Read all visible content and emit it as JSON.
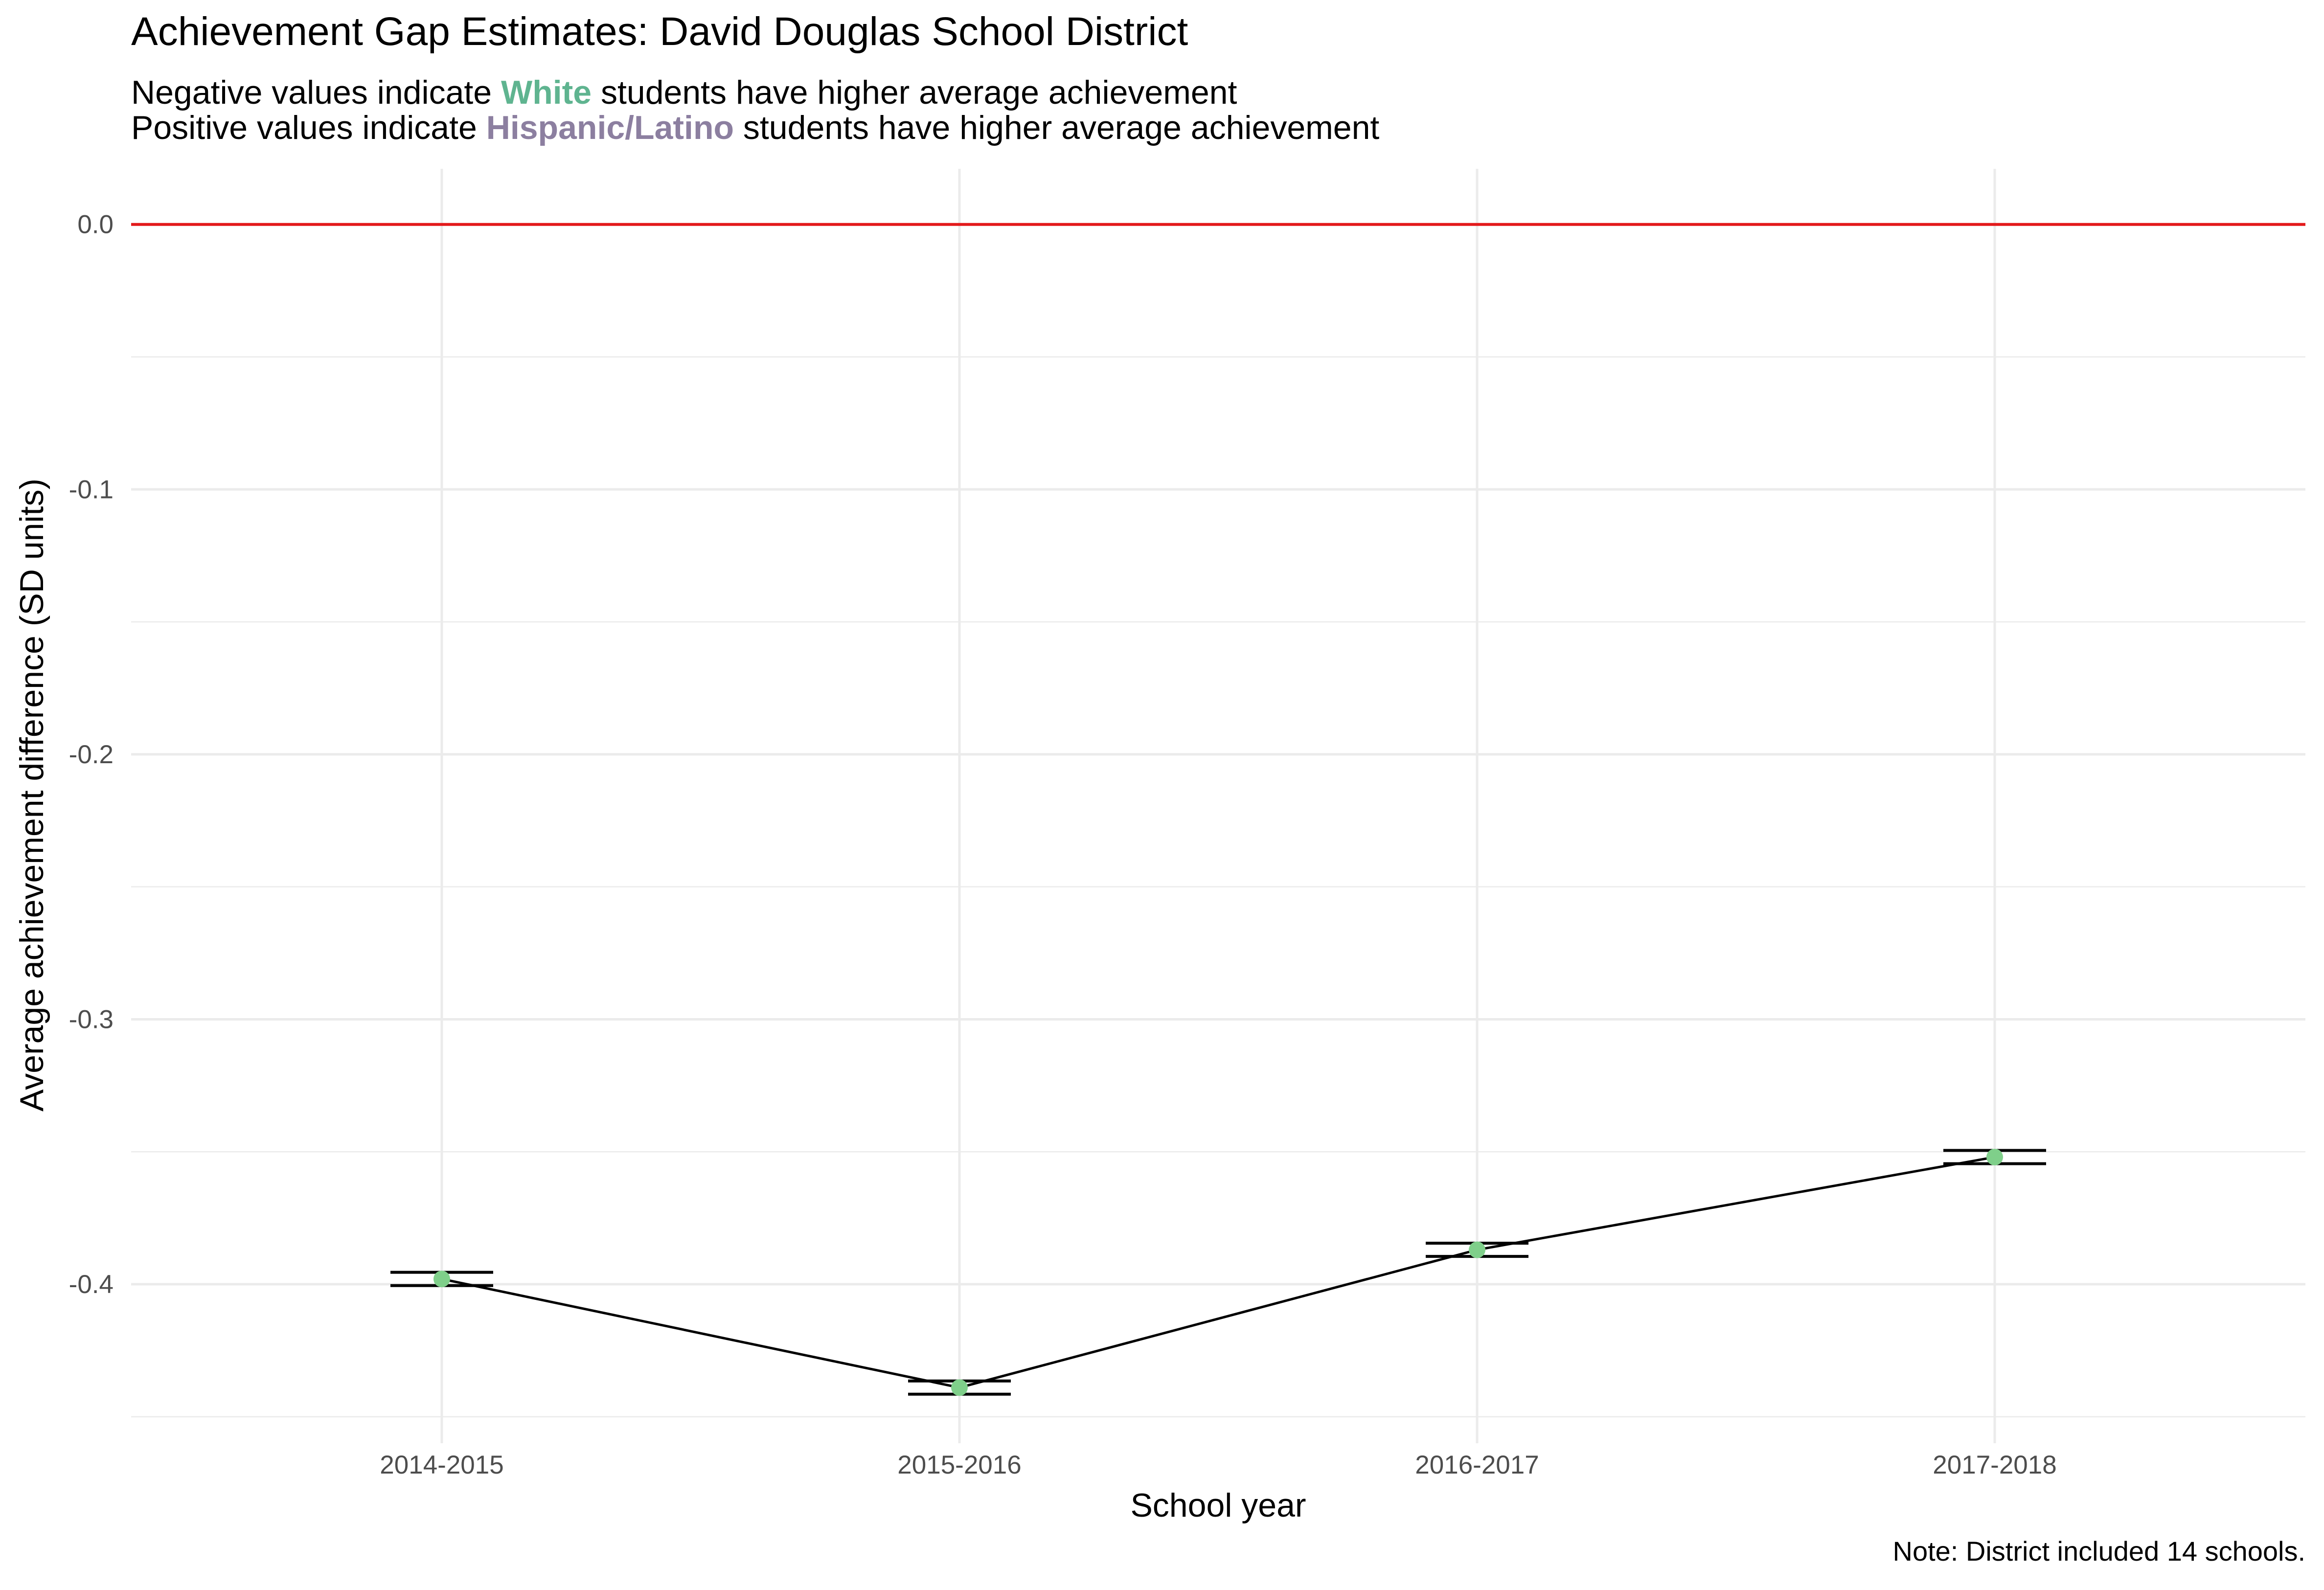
{
  "title": "Achievement Gap Estimates: David Douglas School District",
  "subtitle": {
    "line1": {
      "before": "Negative values indicate ",
      "highlight": "White",
      "after": " students have higher average achievement"
    },
    "line2": {
      "before": "Positive values indicate ",
      "highlight": "Hispanic/Latino",
      "after": " students have higher average achievement"
    }
  },
  "caption": "Note: District included 14 schools.",
  "colors": {
    "white_group": "#5fb490",
    "hispanic_group": "#8c7fa0",
    "reference_line": "#e31a1c",
    "points": "#7fcf8a",
    "line": "#000000",
    "grid": "#ebebeb"
  },
  "chart_data": {
    "type": "line",
    "xlabel": "School year",
    "ylabel": "Average achievement difference (SD units)",
    "categories": [
      "2014-2015",
      "2015-2016",
      "2016-2017",
      "2017-2018"
    ],
    "values": [
      -0.398,
      -0.439,
      -0.387,
      -0.352
    ],
    "error_low": [
      -0.4005,
      -0.4415,
      -0.3895,
      -0.3545
    ],
    "error_high": [
      -0.3955,
      -0.4365,
      -0.3845,
      -0.3495
    ],
    "yticks": [
      0.0,
      -0.1,
      -0.2,
      -0.3,
      -0.4
    ],
    "ytick_labels": [
      "0.0",
      "-0.1",
      "-0.2",
      "-0.3",
      "-0.4"
    ],
    "ylim": [
      -0.46,
      0.021
    ],
    "reference_line_y": 0.0,
    "grid": true,
    "legend": "none"
  }
}
